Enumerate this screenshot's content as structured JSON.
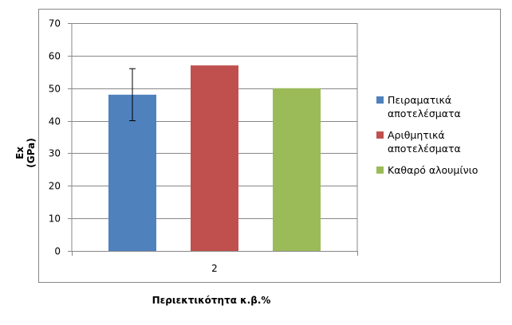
{
  "chart_data": {
    "type": "bar",
    "categories": [
      "2"
    ],
    "series": [
      {
        "name": "Πειραματικά αποτελέσματα",
        "values": [
          48
        ],
        "error": [
          8
        ],
        "color": "#4f81bd"
      },
      {
        "name": "Αριθμητικά αποτελέσματα",
        "values": [
          57
        ],
        "color": "#c0504d"
      },
      {
        "name": "Καθαρό αλουμίνιο",
        "values": [
          50
        ],
        "color": "#9bbb59"
      }
    ],
    "xlabel": "Περιεκτικότητα κ.β.%",
    "ylabel": "Ex (GPa)",
    "ylim": [
      0,
      70
    ],
    "yticks": [
      0,
      10,
      20,
      30,
      40,
      50,
      60,
      70
    ],
    "grid": true,
    "legend_position": "right"
  },
  "legend": {
    "items": [
      {
        "label": "Πειραματικά αποτελέσματα",
        "color": "#4f81bd"
      },
      {
        "label": "Αριθμητικά αποτελέσματα",
        "color": "#c0504d"
      },
      {
        "label": "Καθαρό αλουμίνιο",
        "color": "#9bbb59"
      }
    ]
  }
}
